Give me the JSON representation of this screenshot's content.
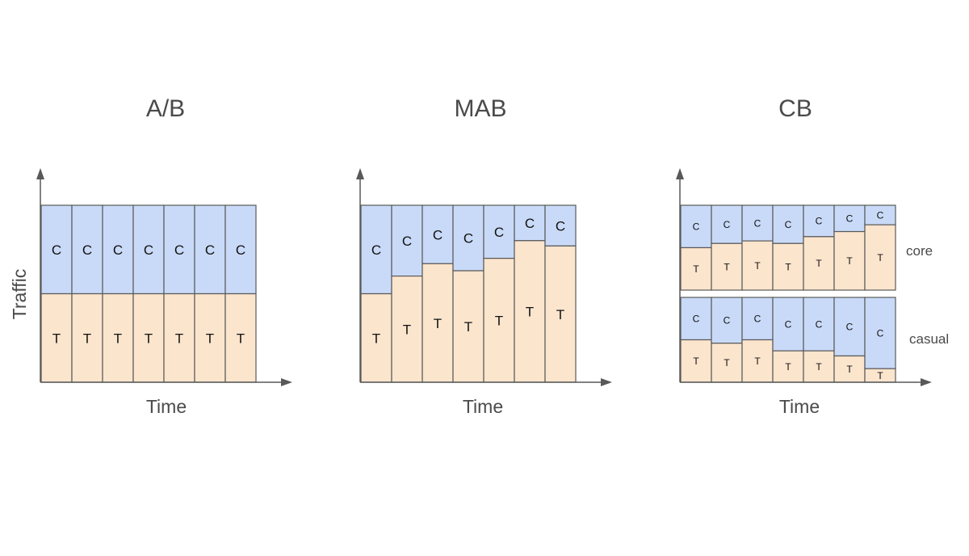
{
  "panels": [
    {
      "id": "ab",
      "title": "A/B",
      "xlabel": "Time",
      "ylabel": "Traffic",
      "groups": [
        {
          "name": "",
          "c_share": [
            0.5,
            0.5,
            0.5,
            0.5,
            0.5,
            0.5,
            0.5
          ]
        }
      ]
    },
    {
      "id": "mab",
      "title": "MAB",
      "xlabel": "Time",
      "ylabel": "",
      "groups": [
        {
          "name": "",
          "c_share": [
            0.5,
            0.4,
            0.33,
            0.37,
            0.3,
            0.2,
            0.23
          ]
        }
      ]
    },
    {
      "id": "cb",
      "title": "CB",
      "xlabel": "Time",
      "ylabel": "",
      "groups": [
        {
          "name": "core",
          "c_share": [
            0.5,
            0.45,
            0.42,
            0.45,
            0.37,
            0.31,
            0.23
          ]
        },
        {
          "name": "casual",
          "c_share": [
            0.5,
            0.54,
            0.5,
            0.63,
            0.63,
            0.69,
            0.84
          ]
        }
      ]
    }
  ],
  "segment_labels": {
    "control": "C",
    "treatment": "T"
  },
  "colors": {
    "control": "#c9daf8",
    "treatment": "#fce5cd",
    "stroke": "#595959",
    "text": "#4a4a4a"
  }
}
